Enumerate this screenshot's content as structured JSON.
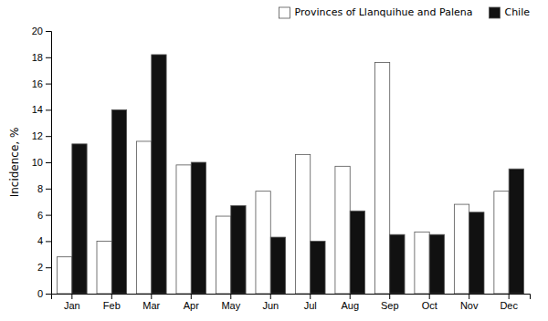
{
  "chart_data": {
    "type": "bar",
    "categories": [
      "Jan",
      "Feb",
      "Mar",
      "Apr",
      "May",
      "Jun",
      "Jul",
      "Aug",
      "Sep",
      "Oct",
      "Nov",
      "Dec"
    ],
    "series": [
      {
        "name": "Provinces of Llanquihue and Palena",
        "color": "#ffffff",
        "values": [
          2.8,
          4.0,
          11.6,
          9.8,
          5.9,
          7.8,
          10.6,
          9.7,
          17.6,
          4.7,
          6.8,
          7.8
        ]
      },
      {
        "name": "Chile",
        "color": "#111111",
        "values": [
          11.4,
          14.0,
          18.2,
          10.0,
          6.7,
          4.3,
          4.0,
          6.3,
          4.5,
          4.5,
          6.2,
          9.5
        ]
      }
    ],
    "ylabel": "Incidence, %",
    "ylim": [
      0,
      20
    ],
    "yticks": [
      0,
      2,
      4,
      6,
      8,
      10,
      12,
      14,
      16,
      18,
      20
    ],
    "legend": "upper right",
    "grid": false
  }
}
